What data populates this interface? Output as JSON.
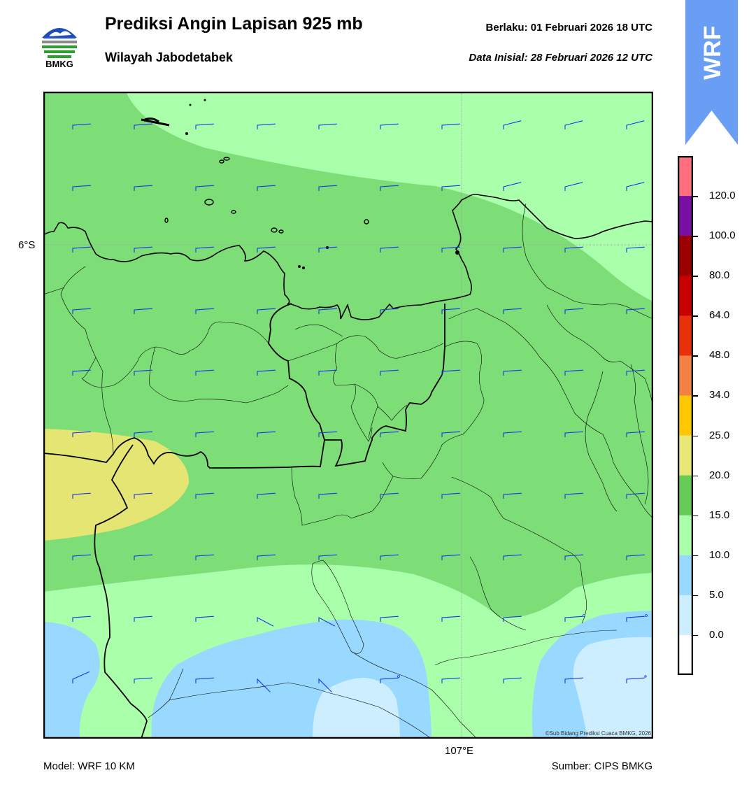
{
  "header": {
    "title": "Prediksi Angin Lapisan 925 mb",
    "subtitle": "Wilayah Jabodetabek",
    "valid_label": "Berlaku:  01 Februari 2026 18 UTC",
    "init_label": "Data Inisial:  28 Februari 2026 12 UTC"
  },
  "logo": {
    "text": "BMKG",
    "icon": "bmkg-logo-icon"
  },
  "badge": {
    "text": "WRF",
    "color": "#6a9ef5"
  },
  "map": {
    "lat_label": "6°S",
    "lon_label": "107°E",
    "copyright": "©Sub Bidang Prediksi Cuaca BMKG, 2026"
  },
  "footer": {
    "model": "Model: WRF 10 KM",
    "source": "Sumber: CIPS BMKG"
  },
  "colorbar": {
    "unit_note": "",
    "labels": [
      "120.0",
      "100.0",
      "80.0",
      "64.0",
      "48.0",
      "34.0",
      "25.0",
      "20.0",
      "15.0",
      "10.0",
      "5.0",
      "0.0"
    ],
    "colors_top_to_bottom": [
      "#ff6f7f",
      "#7a0fa3",
      "#9b0000",
      "#c80000",
      "#e8300a",
      "#f58045",
      "#ffc800",
      "#e8e878",
      "#66cc55",
      "#aaffaa",
      "#99d9ff",
      "#cceeff",
      "#ffffff"
    ]
  },
  "fill_colors": {
    "speed_0_5": "#cceeff",
    "speed_5_10": "#99d9ff",
    "speed_10_15": "#aaffaa",
    "speed_15_20": "#7ddd77",
    "speed_20_25": "#e5e573",
    "barb": "#1a33ee",
    "border": "#000000"
  }
}
